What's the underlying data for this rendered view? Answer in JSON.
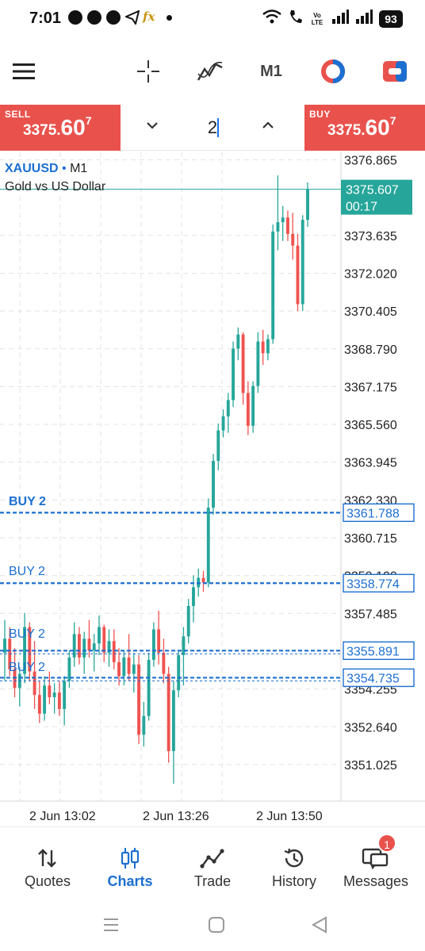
{
  "status_bar": {
    "time": "7:01",
    "battery": "93",
    "volte": "Vo LTE",
    "fx_icon": "fx"
  },
  "toolbar": {
    "menu_icon": "hamburger-menu-icon",
    "crosshair_icon": "crosshair-icon",
    "indicators_icon": "indicators-icon",
    "timeframe": "M1",
    "icon4": "trade-round-icon",
    "icon5": "trade-box-icon"
  },
  "trade_panel": {
    "sell": {
      "label": "SELL",
      "price_main": "3375.",
      "price_big": "60",
      "price_sup": "7"
    },
    "buy": {
      "label": "BUY",
      "price_main": "3375.",
      "price_big": "60",
      "price_sup": "7"
    },
    "lot_value": "2"
  },
  "chart": {
    "symbol": "XAUUSD",
    "separator": "•",
    "timeframe": "M1",
    "description": "Gold vs US Dollar",
    "current_price": "3375.607",
    "timer": "00:17",
    "price_axis_labels": [
      "3376.865",
      "3373.635",
      "3372.020",
      "3370.405",
      "3368.790",
      "3367.175",
      "3365.560",
      "3363.945",
      "3362.330",
      "3360.715",
      "3359.100",
      "3357.485",
      "3355.870",
      "3354.255",
      "3352.640",
      "3351.025"
    ],
    "time_labels": [
      "2 Jun 13:02",
      "2 Jun 13:26",
      "2 Jun 13:50"
    ],
    "order_lines": [
      {
        "label": "BUY 2",
        "price": "3361.788"
      },
      {
        "label": "BUY 2",
        "price": "3358.774"
      },
      {
        "label": "BUY 2",
        "price": "3355.891"
      },
      {
        "label": "BUY 2",
        "price": "3354.735"
      }
    ],
    "colors": {
      "bull": "#26a69a",
      "bear": "#ef5350",
      "order": "#1c6fd1",
      "price_tag": "#26a69a"
    }
  },
  "chart_data": {
    "type": "candlestick",
    "title": "XAUUSD M1",
    "ylim": [
      3350.2,
      3377.6
    ],
    "candles": [
      [
        3355.8,
        3357.2,
        3354.6,
        3356.4
      ],
      [
        3356.4,
        3356.9,
        3354.8,
        3355.1
      ],
      [
        3355.1,
        3356.0,
        3353.9,
        3354.3
      ],
      [
        3354.3,
        3355.2,
        3353.5,
        3354.9
      ],
      [
        3354.9,
        3357.5,
        3354.5,
        3356.9
      ],
      [
        3356.9,
        3357.1,
        3354.6,
        3355.0
      ],
      [
        3355.0,
        3356.3,
        3353.4,
        3354.0
      ],
      [
        3354.0,
        3354.6,
        3352.8,
        3353.2
      ],
      [
        3353.2,
        3354.8,
        3352.9,
        3354.4
      ],
      [
        3354.4,
        3355.0,
        3353.6,
        3353.9
      ],
      [
        3353.9,
        3354.5,
        3353.2,
        3354.1
      ],
      [
        3354.1,
        3354.6,
        3353.1,
        3353.4
      ],
      [
        3353.4,
        3354.8,
        3352.7,
        3354.6
      ],
      [
        3354.6,
        3355.9,
        3354.3,
        3355.6
      ],
      [
        3355.6,
        3357.1,
        3355.2,
        3356.6
      ],
      [
        3356.6,
        3356.9,
        3355.3,
        3355.6
      ],
      [
        3355.6,
        3356.7,
        3354.9,
        3356.4
      ],
      [
        3356.4,
        3357.2,
        3355.6,
        3355.9
      ],
      [
        3355.9,
        3356.6,
        3355.0,
        3356.2
      ],
      [
        3356.2,
        3357.4,
        3355.7,
        3356.9
      ],
      [
        3356.9,
        3357.0,
        3355.4,
        3355.8
      ],
      [
        3355.8,
        3356.8,
        3355.2,
        3356.3
      ],
      [
        3356.3,
        3356.8,
        3355.1,
        3355.4
      ],
      [
        3355.4,
        3356.0,
        3354.4,
        3354.8
      ],
      [
        3354.8,
        3355.9,
        3354.4,
        3355.6
      ],
      [
        3355.6,
        3356.6,
        3354.6,
        3354.9
      ],
      [
        3354.9,
        3355.8,
        3354.1,
        3355.3
      ],
      [
        3355.3,
        3355.7,
        3351.9,
        3352.3
      ],
      [
        3352.3,
        3353.7,
        3351.8,
        3353.1
      ],
      [
        3353.1,
        3355.8,
        3352.9,
        3355.5
      ],
      [
        3355.5,
        3357.1,
        3355.2,
        3356.8
      ],
      [
        3356.8,
        3357.6,
        3355.3,
        3355.8
      ],
      [
        3355.8,
        3356.4,
        3354.5,
        3354.9
      ],
      [
        3354.9,
        3355.2,
        3351.1,
        3351.6
      ],
      [
        3351.6,
        3354.6,
        3350.2,
        3354.2
      ],
      [
        3354.2,
        3355.9,
        3353.9,
        3355.7
      ],
      [
        3355.7,
        3356.9,
        3354.4,
        3356.5
      ],
      [
        3356.5,
        3358.1,
        3356.2,
        3357.8
      ],
      [
        3357.8,
        3359.1,
        3357.1,
        3358.6
      ],
      [
        3358.6,
        3359.4,
        3358.2,
        3359.0
      ],
      [
        3359.0,
        3359.3,
        3358.4,
        3358.8
      ],
      [
        3358.8,
        3362.4,
        3358.6,
        3362.0
      ],
      [
        3362.0,
        3364.3,
        3361.7,
        3364.0
      ],
      [
        3364.0,
        3365.6,
        3363.6,
        3365.3
      ],
      [
        3365.3,
        3366.2,
        3365.0,
        3365.9
      ],
      [
        3365.9,
        3366.9,
        3365.2,
        3366.6
      ],
      [
        3366.6,
        3369.1,
        3366.3,
        3368.8
      ],
      [
        3368.8,
        3369.7,
        3368.3,
        3369.4
      ],
      [
        3369.4,
        3369.5,
        3366.4,
        3366.9
      ],
      [
        3366.9,
        3367.4,
        3365.1,
        3365.5
      ],
      [
        3365.5,
        3367.4,
        3365.2,
        3367.2
      ],
      [
        3367.2,
        3369.5,
        3366.9,
        3369.1
      ],
      [
        3369.1,
        3369.6,
        3368.1,
        3368.6
      ],
      [
        3368.6,
        3369.4,
        3368.3,
        3369.2
      ],
      [
        3369.2,
        3374.1,
        3369.0,
        3373.8
      ],
      [
        3373.8,
        3376.2,
        3373.0,
        3374.2
      ],
      [
        3374.2,
        3374.9,
        3373.4,
        3374.4
      ],
      [
        3374.4,
        3374.7,
        3373.4,
        3373.7
      ],
      [
        3373.7,
        3374.6,
        3372.6,
        3373.2
      ],
      [
        3373.2,
        3373.7,
        3370.4,
        3370.7
      ],
      [
        3370.7,
        3374.5,
        3370.4,
        3374.3
      ],
      [
        3374.3,
        3375.9,
        3374.0,
        3375.6
      ]
    ]
  },
  "bottom_nav": {
    "items": [
      {
        "label": "Quotes",
        "icon": "quotes-arrows-icon"
      },
      {
        "label": "Charts",
        "icon": "charts-candles-icon"
      },
      {
        "label": "Trade",
        "icon": "trade-line-icon"
      },
      {
        "label": "History",
        "icon": "history-clock-icon"
      },
      {
        "label": "Messages",
        "icon": "messages-icon"
      }
    ],
    "messages_badge": "1",
    "active": "Charts"
  }
}
